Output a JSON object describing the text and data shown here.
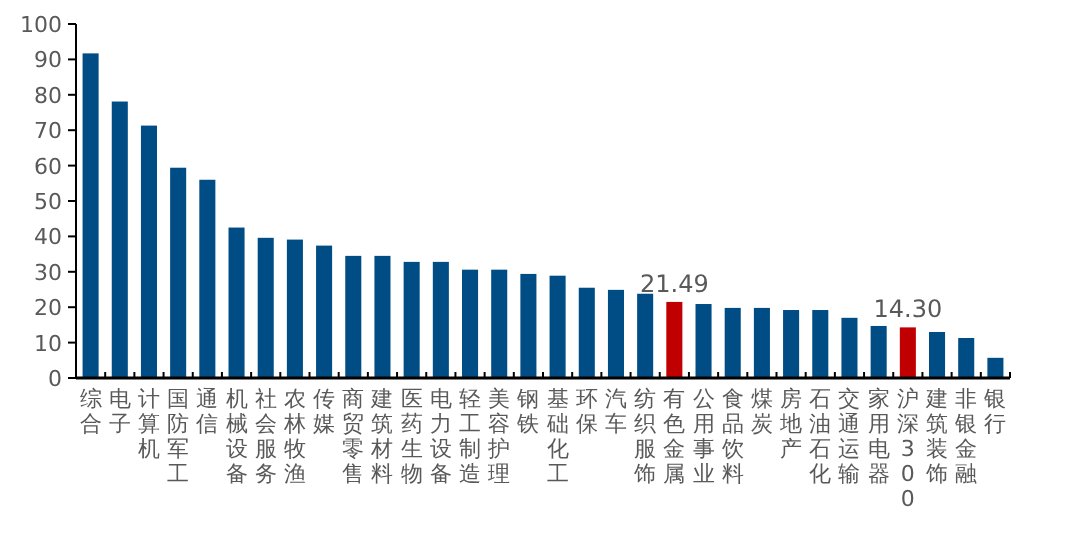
{
  "chart_data": {
    "type": "bar",
    "categories": [
      "综合",
      "电子",
      "计算机",
      "国防军工",
      "通信",
      "机械设备",
      "社会服务",
      "农林牧渔",
      "传媒",
      "商贸零售",
      "建筑材料",
      "医药生物",
      "电力设备",
      "轻工制造",
      "美容护理",
      "钢铁",
      "基础化工",
      "环保",
      "汽车",
      "纺织服饰",
      "有色金属",
      "公用事业",
      "食品饮料",
      "煤炭",
      "房地产",
      "石油石化",
      "交通运输",
      "家用电器",
      "沪深300",
      "建筑装饰",
      "非银金融",
      "银行"
    ],
    "values": [
      91.7,
      78.1,
      71.3,
      59.4,
      56.0,
      42.5,
      39.6,
      39.1,
      37.4,
      34.5,
      34.5,
      32.8,
      32.8,
      30.6,
      30.6,
      29.4,
      28.9,
      25.5,
      24.9,
      23.8,
      21.49,
      20.9,
      19.8,
      19.8,
      19.2,
      19.2,
      17.0,
      14.7,
      14.3,
      13.0,
      11.3,
      5.7
    ],
    "colors": [
      "#004c84",
      "#004c84",
      "#004c84",
      "#004c84",
      "#004c84",
      "#004c84",
      "#004c84",
      "#004c84",
      "#004c84",
      "#004c84",
      "#004c84",
      "#004c84",
      "#004c84",
      "#004c84",
      "#004c84",
      "#004c84",
      "#004c84",
      "#004c84",
      "#004c84",
      "#004c84",
      "#c00000",
      "#004c84",
      "#004c84",
      "#004c84",
      "#004c84",
      "#004c84",
      "#004c84",
      "#004c84",
      "#c00000",
      "#004c84",
      "#004c84",
      "#004c84"
    ],
    "value_labels": [
      null,
      null,
      null,
      null,
      null,
      null,
      null,
      null,
      null,
      null,
      null,
      null,
      null,
      null,
      null,
      null,
      null,
      null,
      null,
      null,
      "21.49",
      null,
      null,
      null,
      null,
      null,
      null,
      null,
      "14.30",
      null,
      null,
      null
    ],
    "ylim": [
      0,
      100
    ],
    "yticks": [
      0,
      10,
      20,
      30,
      40,
      50,
      60,
      70,
      80,
      90,
      100
    ],
    "grid": false
  }
}
